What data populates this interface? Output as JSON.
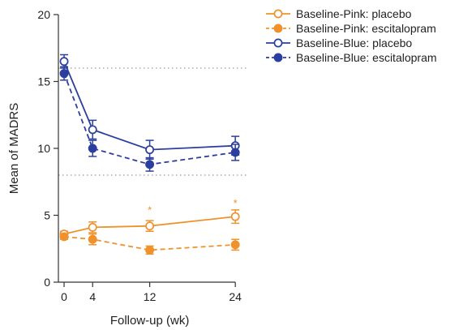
{
  "chart_data": {
    "type": "line",
    "title": "",
    "xlabel": "Follow-up (wk)",
    "ylabel": "Mean of MADRS",
    "x": [
      0,
      4,
      12,
      24
    ],
    "x_tick_labels": [
      "0",
      "4",
      "12",
      "24"
    ],
    "xlim": [
      -0.8,
      25.8
    ],
    "ylim": [
      0,
      20
    ],
    "y_ticks": [
      0,
      5,
      10,
      15,
      20
    ],
    "y_tick_labels": [
      "0",
      "5",
      "10",
      "15",
      "20"
    ],
    "reference_lines": [
      16,
      8
    ],
    "legend_position": "top-right",
    "series": [
      {
        "name": "Baseline-Pink: placebo",
        "color": "#f0922b",
        "line_style": "solid",
        "marker": "open-circle",
        "values": [
          3.6,
          4.1,
          4.2,
          4.9
        ],
        "error": [
          0.2,
          0.4,
          0.4,
          0.5
        ]
      },
      {
        "name": "Baseline-Pink: escitalopram",
        "color": "#f0922b",
        "line_style": "dashed",
        "marker": "filled-circle",
        "values": [
          3.4,
          3.2,
          2.4,
          2.8
        ],
        "error": [
          0.2,
          0.4,
          0.3,
          0.4
        ]
      },
      {
        "name": "Baseline-Blue: placebo",
        "color": "#2b3f9e",
        "line_style": "solid",
        "marker": "open-circle",
        "values": [
          16.5,
          11.4,
          9.9,
          10.2
        ],
        "error": [
          0.5,
          0.7,
          0.7,
          0.7
        ]
      },
      {
        "name": "Baseline-Blue: escitalopram",
        "color": "#2b3f9e",
        "line_style": "dashed",
        "marker": "filled-circle",
        "values": [
          15.6,
          10.0,
          8.8,
          9.7
        ],
        "error": [
          0.5,
          0.6,
          0.5,
          0.6
        ]
      }
    ],
    "annotations": [
      {
        "text": "*",
        "x": 12,
        "y": 5.5,
        "color": "#f0922b"
      },
      {
        "text": "*",
        "x": 24,
        "y": 6.0,
        "color": "#f0922b"
      }
    ]
  }
}
